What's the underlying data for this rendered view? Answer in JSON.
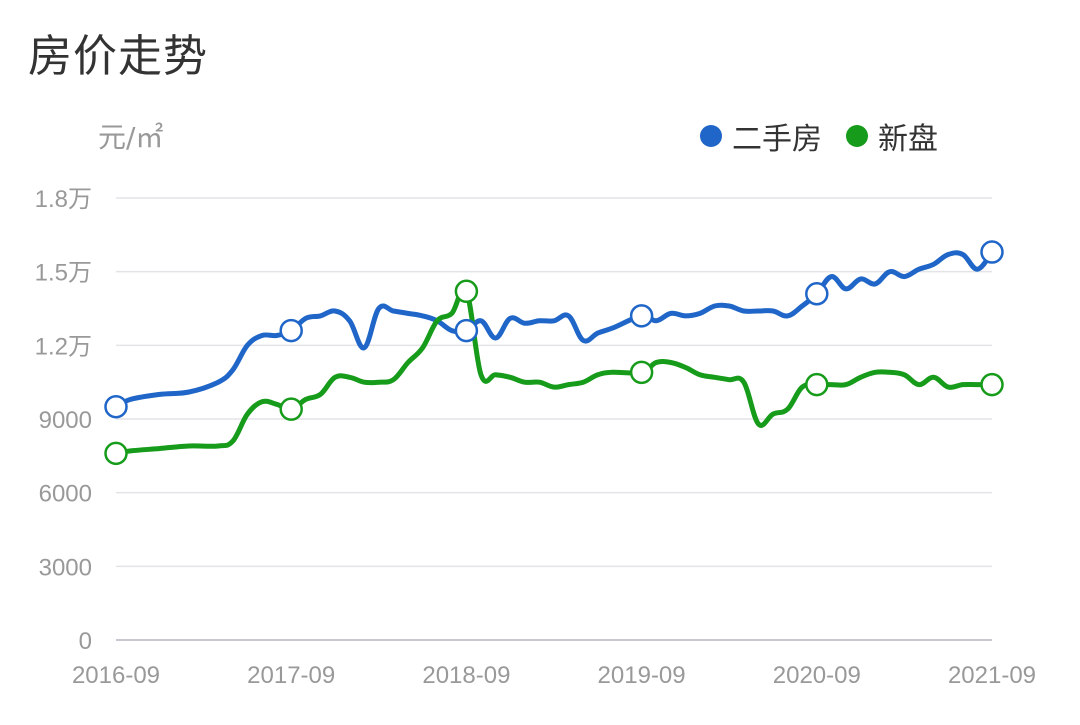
{
  "page": {
    "title": "房价走势",
    "unit": "元/㎡"
  },
  "legend": [
    {
      "name": "二手房",
      "color": "#1f66c8"
    },
    {
      "name": "新盘",
      "color": "#169b1a"
    }
  ],
  "chart_data": {
    "type": "line",
    "title": "房价走势",
    "ylabel": "元/㎡",
    "xlabel": "",
    "legend_position": "top-right",
    "grid": true,
    "ylim": [
      0,
      18000
    ],
    "y_ticks": [
      {
        "value": 0,
        "label": "0"
      },
      {
        "value": 3000,
        "label": "3000"
      },
      {
        "value": 6000,
        "label": "6000"
      },
      {
        "value": 9000,
        "label": "9000"
      },
      {
        "value": 12000,
        "label": "1.2万"
      },
      {
        "value": 15000,
        "label": "1.5万"
      },
      {
        "value": 18000,
        "label": "1.8万"
      }
    ],
    "x_ticks": [
      "2016-09",
      "2017-09",
      "2018-09",
      "2019-09",
      "2020-09",
      "2021-09"
    ],
    "markers_x": [
      "2016-09",
      "2017-09",
      "2018-09",
      "2019-09",
      "2020-09",
      "2021-09"
    ],
    "series": [
      {
        "name": "二手房",
        "color": "#1f66c8",
        "points": [
          [
            "2016-09",
            9500
          ],
          [
            "2016-10",
            9800
          ],
          [
            "2016-12",
            10000
          ],
          [
            "2017-02",
            10100
          ],
          [
            "2017-04",
            10500
          ],
          [
            "2017-05",
            11000
          ],
          [
            "2017-06",
            12000
          ],
          [
            "2017-07",
            12400
          ],
          [
            "2017-08",
            12400
          ],
          [
            "2017-09",
            12600
          ],
          [
            "2017-10",
            13100
          ],
          [
            "2017-11",
            13200
          ],
          [
            "2017-12",
            13400
          ],
          [
            "2018-01",
            13000
          ],
          [
            "2018-02",
            11900
          ],
          [
            "2018-03",
            13500
          ],
          [
            "2018-04",
            13400
          ],
          [
            "2018-05",
            13300
          ],
          [
            "2018-06",
            13200
          ],
          [
            "2018-07",
            13000
          ],
          [
            "2018-08",
            12600
          ],
          [
            "2018-09",
            12600
          ],
          [
            "2018-10",
            13000
          ],
          [
            "2018-11",
            12300
          ],
          [
            "2018-12",
            13100
          ],
          [
            "2019-01",
            12900
          ],
          [
            "2019-02",
            13000
          ],
          [
            "2019-03",
            13000
          ],
          [
            "2019-04",
            13200
          ],
          [
            "2019-05",
            12200
          ],
          [
            "2019-06",
            12500
          ],
          [
            "2019-07",
            12700
          ],
          [
            "2019-09",
            13200
          ],
          [
            "2019-10",
            13000
          ],
          [
            "2019-11",
            13300
          ],
          [
            "2019-12",
            13200
          ],
          [
            "2020-01",
            13300
          ],
          [
            "2020-02",
            13600
          ],
          [
            "2020-03",
            13600
          ],
          [
            "2020-04",
            13400
          ],
          [
            "2020-05",
            13400
          ],
          [
            "2020-06",
            13400
          ],
          [
            "2020-07",
            13200
          ],
          [
            "2020-08",
            13600
          ],
          [
            "2020-09",
            14100
          ],
          [
            "2020-10",
            14800
          ],
          [
            "2020-11",
            14300
          ],
          [
            "2020-12",
            14700
          ],
          [
            "2021-01",
            14500
          ],
          [
            "2021-02",
            15000
          ],
          [
            "2021-03",
            14800
          ],
          [
            "2021-04",
            15100
          ],
          [
            "2021-05",
            15300
          ],
          [
            "2021-06",
            15700
          ],
          [
            "2021-07",
            15700
          ],
          [
            "2021-08",
            15100
          ],
          [
            "2021-09",
            15800
          ]
        ]
      },
      {
        "name": "新盘",
        "color": "#169b1a",
        "points": [
          [
            "2016-09",
            7600
          ],
          [
            "2016-10",
            7700
          ],
          [
            "2016-12",
            7800
          ],
          [
            "2017-02",
            7900
          ],
          [
            "2017-04",
            7900
          ],
          [
            "2017-05",
            8100
          ],
          [
            "2017-06",
            9200
          ],
          [
            "2017-07",
            9700
          ],
          [
            "2017-08",
            9600
          ],
          [
            "2017-09",
            9400
          ],
          [
            "2017-10",
            9800
          ],
          [
            "2017-11",
            10000
          ],
          [
            "2017-12",
            10700
          ],
          [
            "2018-01",
            10700
          ],
          [
            "2018-02",
            10500
          ],
          [
            "2018-03",
            10500
          ],
          [
            "2018-04",
            10600
          ],
          [
            "2018-05",
            11300
          ],
          [
            "2018-06",
            11900
          ],
          [
            "2018-07",
            13000
          ],
          [
            "2018-08",
            13300
          ],
          [
            "2018-09",
            14200
          ],
          [
            "2018-10",
            10800
          ],
          [
            "2018-11",
            10800
          ],
          [
            "2018-12",
            10700
          ],
          [
            "2019-01",
            10500
          ],
          [
            "2019-02",
            10500
          ],
          [
            "2019-03",
            10300
          ],
          [
            "2019-04",
            10400
          ],
          [
            "2019-05",
            10500
          ],
          [
            "2019-06",
            10800
          ],
          [
            "2019-07",
            10900
          ],
          [
            "2019-09",
            10900
          ],
          [
            "2019-10",
            11300
          ],
          [
            "2019-11",
            11300
          ],
          [
            "2019-12",
            11100
          ],
          [
            "2020-01",
            10800
          ],
          [
            "2020-02",
            10700
          ],
          [
            "2020-03",
            10600
          ],
          [
            "2020-04",
            10500
          ],
          [
            "2020-05",
            8800
          ],
          [
            "2020-06",
            9200
          ],
          [
            "2020-07",
            9400
          ],
          [
            "2020-08",
            10300
          ],
          [
            "2020-09",
            10400
          ],
          [
            "2020-10",
            10400
          ],
          [
            "2020-11",
            10400
          ],
          [
            "2020-12",
            10700
          ],
          [
            "2021-01",
            10900
          ],
          [
            "2021-02",
            10900
          ],
          [
            "2021-03",
            10800
          ],
          [
            "2021-04",
            10400
          ],
          [
            "2021-05",
            10700
          ],
          [
            "2021-06",
            10300
          ],
          [
            "2021-07",
            10400
          ],
          [
            "2021-08",
            10400
          ],
          [
            "2021-09",
            10400
          ]
        ]
      }
    ]
  }
}
